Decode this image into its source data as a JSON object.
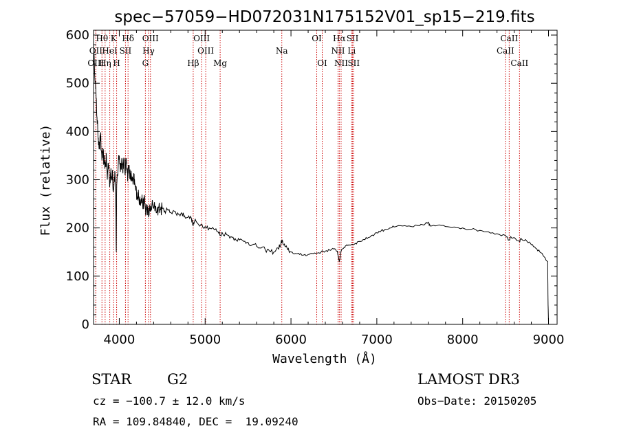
{
  "chart_data": {
    "type": "line",
    "title": "spec−57059−HD072031N175152V01_sp15−219.fits",
    "xlabel": "Wavelength (Å)",
    "ylabel": "Flux (relative)",
    "xlim": [
      3700,
      9100
    ],
    "ylim": [
      0,
      610
    ],
    "xticks": [
      4000,
      5000,
      6000,
      7000,
      8000,
      9000
    ],
    "yticks": [
      0,
      100,
      200,
      300,
      400,
      500,
      600
    ],
    "series": [
      {
        "name": "flux",
        "points": [
          [
            3700,
            560
          ],
          [
            3710,
            540
          ],
          [
            3720,
            505
          ],
          [
            3730,
            470
          ],
          [
            3740,
            430
          ],
          [
            3750,
            400
          ],
          [
            3760,
            380
          ],
          [
            3770,
            365
          ],
          [
            3780,
            395
          ],
          [
            3790,
            360
          ],
          [
            3800,
            345
          ],
          [
            3810,
            355
          ],
          [
            3820,
            340
          ],
          [
            3830,
            335
          ],
          [
            3840,
            330
          ],
          [
            3850,
            345
          ],
          [
            3860,
            300
          ],
          [
            3870,
            335
          ],
          [
            3880,
            320
          ],
          [
            3890,
            290
          ],
          [
            3900,
            315
          ],
          [
            3910,
            300
          ],
          [
            3920,
            320
          ],
          [
            3930,
            275
          ],
          [
            3940,
            300
          ],
          [
            3950,
            315
          ],
          [
            3960,
            240
          ],
          [
            3965,
            150
          ],
          [
            3970,
            290
          ],
          [
            3980,
            310
          ],
          [
            3990,
            340
          ],
          [
            4000,
            350
          ],
          [
            4010,
            325
          ],
          [
            4020,
            330
          ],
          [
            4030,
            345
          ],
          [
            4040,
            320
          ],
          [
            4050,
            340
          ],
          [
            4060,
            330
          ],
          [
            4070,
            315
          ],
          [
            4080,
            345
          ],
          [
            4090,
            325
          ],
          [
            4100,
            305
          ],
          [
            4110,
            330
          ],
          [
            4120,
            320
          ],
          [
            4130,
            300
          ],
          [
            4140,
            310
          ],
          [
            4150,
            300
          ],
          [
            4160,
            290
          ],
          [
            4170,
            305
          ],
          [
            4180,
            290
          ],
          [
            4190,
            280
          ],
          [
            4200,
            275
          ],
          [
            4210,
            265
          ],
          [
            4220,
            270
          ],
          [
            4230,
            258
          ],
          [
            4240,
            265
          ],
          [
            4250,
            250
          ],
          [
            4260,
            262
          ],
          [
            4270,
            255
          ],
          [
            4280,
            245
          ],
          [
            4290,
            260
          ],
          [
            4300,
            250
          ],
          [
            4310,
            228
          ],
          [
            4320,
            245
          ],
          [
            4330,
            238
          ],
          [
            4340,
            222
          ],
          [
            4350,
            240
          ],
          [
            4360,
            235
          ],
          [
            4380,
            248
          ],
          [
            4400,
            240
          ],
          [
            4420,
            245
          ],
          [
            4440,
            235
          ],
          [
            4460,
            242
          ],
          [
            4480,
            238
          ],
          [
            4500,
            240
          ],
          [
            4530,
            235
          ],
          [
            4560,
            238
          ],
          [
            4600,
            232
          ],
          [
            4630,
            236
          ],
          [
            4660,
            230
          ],
          [
            4700,
            228
          ],
          [
            4730,
            230
          ],
          [
            4760,
            225
          ],
          [
            4800,
            222
          ],
          [
            4840,
            220
          ],
          [
            4860,
            205
          ],
          [
            4880,
            215
          ],
          [
            4900,
            212
          ],
          [
            4950,
            207
          ],
          [
            5000,
            203
          ],
          [
            5050,
            200
          ],
          [
            5100,
            198
          ],
          [
            5150,
            192
          ],
          [
            5180,
            185
          ],
          [
            5200,
            190
          ],
          [
            5250,
            186
          ],
          [
            5300,
            182
          ],
          [
            5350,
            178
          ],
          [
            5400,
            175
          ],
          [
            5450,
            172
          ],
          [
            5500,
            170
          ],
          [
            5550,
            165
          ],
          [
            5600,
            162
          ],
          [
            5650,
            158
          ],
          [
            5700,
            155
          ],
          [
            5750,
            152
          ],
          [
            5800,
            150
          ],
          [
            5850,
            158
          ],
          [
            5880,
            165
          ],
          [
            5895,
            175
          ],
          [
            5905,
            168
          ],
          [
            5930,
            162
          ],
          [
            5960,
            155
          ],
          [
            6000,
            150
          ],
          [
            6050,
            147
          ],
          [
            6100,
            145
          ],
          [
            6150,
            144
          ],
          [
            6200,
            145
          ],
          [
            6250,
            147
          ],
          [
            6300,
            148
          ],
          [
            6350,
            150
          ],
          [
            6400,
            152
          ],
          [
            6450,
            154
          ],
          [
            6500,
            156
          ],
          [
            6540,
            152
          ],
          [
            6563,
            130
          ],
          [
            6580,
            150
          ],
          [
            6620,
            160
          ],
          [
            6650,
            165
          ],
          [
            6700,
            165
          ],
          [
            6750,
            168
          ],
          [
            6800,
            172
          ],
          [
            6850,
            176
          ],
          [
            6900,
            180
          ],
          [
            6950,
            185
          ],
          [
            7000,
            190
          ],
          [
            7050,
            194
          ],
          [
            7100,
            197
          ],
          [
            7150,
            200
          ],
          [
            7200,
            202
          ],
          [
            7300,
            204
          ],
          [
            7400,
            203
          ],
          [
            7500,
            205
          ],
          [
            7550,
            206
          ],
          [
            7600,
            212
          ],
          [
            7620,
            204
          ],
          [
            7700,
            205
          ],
          [
            7800,
            203
          ],
          [
            7900,
            202
          ],
          [
            8000,
            200
          ],
          [
            8100,
            197
          ],
          [
            8200,
            195
          ],
          [
            8300,
            192
          ],
          [
            8400,
            188
          ],
          [
            8500,
            184
          ],
          [
            8542,
            175
          ],
          [
            8560,
            182
          ],
          [
            8600,
            180
          ],
          [
            8662,
            172
          ],
          [
            8680,
            178
          ],
          [
            8750,
            172
          ],
          [
            8800,
            165
          ],
          [
            8850,
            158
          ],
          [
            8900,
            150
          ],
          [
            8950,
            140
          ],
          [
            8990,
            130
          ],
          [
            8995,
            40
          ],
          [
            9000,
            5
          ]
        ]
      }
    ],
    "line_markers": [
      {
        "label": "Hθ",
        "wavelength": 3798,
        "row": 0
      },
      {
        "label": "OII",
        "wavelength": 3727,
        "row": 1
      },
      {
        "label": "OIII",
        "wavelength": 3727,
        "row": 2
      },
      {
        "label": "K",
        "wavelength": 3934,
        "row": 0
      },
      {
        "label": "HeI",
        "wavelength": 3889,
        "row": 1
      },
      {
        "label": "Hη",
        "wavelength": 3835,
        "row": 2
      },
      {
        "label": "SII",
        "wavelength": 4072,
        "row": 1
      },
      {
        "label": "H",
        "wavelength": 3969,
        "row": 2
      },
      {
        "label": "Hδ",
        "wavelength": 4102,
        "row": 0
      },
      {
        "label": "OIII",
        "wavelength": 4363,
        "row": 0
      },
      {
        "label": "Hγ",
        "wavelength": 4341,
        "row": 1
      },
      {
        "label": "G",
        "wavelength": 4304,
        "row": 2
      },
      {
        "label": "Hβ",
        "wavelength": 4861,
        "row": 2
      },
      {
        "label": "OIII",
        "wavelength": 4959,
        "row": 0
      },
      {
        "label": "OIII",
        "wavelength": 5007,
        "row": 1
      },
      {
        "label": "Mg",
        "wavelength": 5175,
        "row": 2
      },
      {
        "label": "Na",
        "wavelength": 5893,
        "row": 1
      },
      {
        "label": "OI",
        "wavelength": 6300,
        "row": 0
      },
      {
        "label": "OI",
        "wavelength": 6364,
        "row": 2
      },
      {
        "label": "Hα",
        "wavelength": 6563,
        "row": 0
      },
      {
        "label": "NII",
        "wavelength": 6548,
        "row": 1
      },
      {
        "label": "NII",
        "wavelength": 6584,
        "row": 2
      },
      {
        "label": "SII",
        "wavelength": 6717,
        "row": 0
      },
      {
        "label": "Li",
        "wavelength": 6707,
        "row": 1
      },
      {
        "label": "SII",
        "wavelength": 6731,
        "row": 2
      },
      {
        "label": "CaII",
        "wavelength": 8542,
        "row": 0
      },
      {
        "label": "CaII",
        "wavelength": 8498,
        "row": 1
      },
      {
        "label": "CaII",
        "wavelength": 8662,
        "row": 2
      }
    ]
  },
  "info": {
    "object_class": "STAR",
    "subclass": "G2",
    "survey": "LAMOST DR3",
    "redshift_line": "cz = −100.7 ± 12.0 km/s",
    "obs_date_line": "Obs−Date: 20150205",
    "coords_line": "RA = 109.84840, DEC =  19.09240"
  },
  "colors": {
    "spectrum": "#000000",
    "marker": "#cc0000",
    "axes": "#000000"
  }
}
